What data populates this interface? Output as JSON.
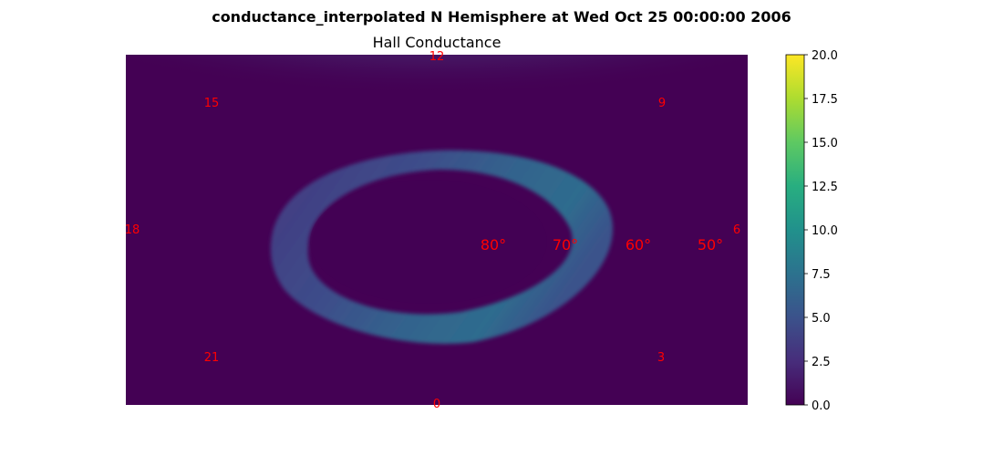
{
  "chart_data": {
    "type": "heatmap",
    "projection": "polar (north pole, magnetic local time / latitude)",
    "title": "conductance_interpolated N Hemisphere at Wed Oct 25 00:00:00 2006",
    "subtitle": "Hall Conductance",
    "colormap": "viridis",
    "colorbar": {
      "range": [
        0.0,
        20.0
      ],
      "ticks": [
        "0.0",
        "2.5",
        "5.0",
        "7.5",
        "10.0",
        "12.5",
        "15.0",
        "17.5",
        "20.0"
      ]
    },
    "mlt_labels": [
      {
        "mlt": 12,
        "text": "12"
      },
      {
        "mlt": 15,
        "text": "15"
      },
      {
        "mlt": 9,
        "text": "9"
      },
      {
        "mlt": 18,
        "text": "18"
      },
      {
        "mlt": 6,
        "text": "6"
      },
      {
        "mlt": 21,
        "text": "21"
      },
      {
        "mlt": 3,
        "text": "3"
      },
      {
        "mlt": 0,
        "text": "0"
      }
    ],
    "latitude_labels": [
      {
        "lat": 80,
        "text": "80°"
      },
      {
        "lat": 70,
        "text": "70°"
      },
      {
        "lat": 60,
        "text": "60°"
      },
      {
        "lat": 50,
        "text": "50°"
      }
    ],
    "background_value": 0.3,
    "features": [
      {
        "name": "dayside_cusp_band",
        "approx_value": 4.5
      },
      {
        "name": "auroral_oval",
        "approx_value_peak": 6.5,
        "approx_value_mean": 4.0
      },
      {
        "name": "polar_cap",
        "approx_value": 0.3
      }
    ]
  }
}
